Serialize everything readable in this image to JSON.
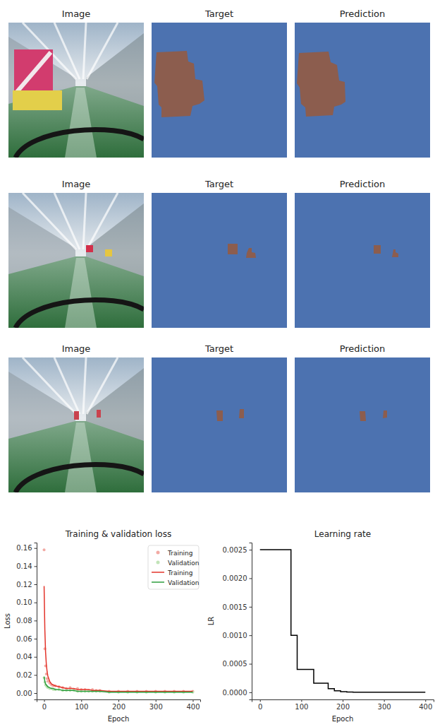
{
  "panels": [
    {
      "title": "Image"
    },
    {
      "title": "Target"
    },
    {
      "title": "Prediction"
    },
    {
      "title": "Image"
    },
    {
      "title": "Target"
    },
    {
      "title": "Prediction"
    },
    {
      "title": "Image"
    },
    {
      "title": "Target"
    },
    {
      "title": "Prediction"
    }
  ],
  "chart_data": [
    {
      "type": "line",
      "title": "Training & validation loss",
      "x_label": "Epoch",
      "y_label": "Loss",
      "x": [
        0,
        2,
        4,
        6,
        8,
        10,
        15,
        20,
        25,
        30,
        40,
        50,
        60,
        70,
        80,
        90,
        100,
        110,
        120,
        130,
        140,
        150,
        175,
        200,
        225,
        250,
        275,
        300,
        325,
        350,
        375,
        400
      ],
      "series": [
        {
          "name": "Training",
          "type": "scatter",
          "marker": "circle",
          "color": "#f2aaa4",
          "values": [
            0.158,
            0.049,
            0.03,
            0.021,
            0.016,
            0.013,
            0.011,
            0.009,
            0.008,
            0.008,
            0.007,
            0.006,
            0.005,
            0.006,
            0.004,
            0.005,
            0.004,
            0.004,
            0.003,
            0.004,
            0.003,
            0.003,
            0.002,
            0.002,
            0.002,
            0.002,
            0.002,
            0.002,
            0.002,
            0.002,
            0.002,
            0.002
          ]
        },
        {
          "name": "Validation",
          "type": "scatter",
          "marker": "circle",
          "color": "#c2e4b8",
          "values": [
            0.017,
            0.012,
            0.009,
            0.008,
            0.007,
            0.006,
            0.005,
            0.005,
            0.004,
            0.004,
            0.004,
            0.003,
            0.003,
            0.003,
            0.003,
            0.002,
            0.002,
            0.002,
            0.002,
            0.002,
            0.002,
            0.002,
            0.001,
            0.001,
            0.001,
            0.001,
            0.001,
            0.001,
            0.001,
            0.001,
            0.001,
            0.001
          ]
        },
        {
          "name": "Training",
          "type": "line",
          "color": "#e3342b",
          "values": [
            0.118,
            0.07,
            0.045,
            0.032,
            0.024,
            0.019,
            0.013,
            0.01,
            0.009,
            0.008,
            0.007,
            0.006,
            0.005,
            0.005,
            0.005,
            0.004,
            0.004,
            0.004,
            0.004,
            0.003,
            0.003,
            0.003,
            0.002,
            0.002,
            0.002,
            0.002,
            0.002,
            0.002,
            0.002,
            0.002,
            0.002,
            0.002
          ]
        },
        {
          "name": "Validation",
          "type": "line",
          "color": "#2e9e3e",
          "values": [
            0.018,
            0.013,
            0.01,
            0.009,
            0.008,
            0.007,
            0.006,
            0.005,
            0.005,
            0.004,
            0.004,
            0.003,
            0.003,
            0.003,
            0.003,
            0.002,
            0.002,
            0.002,
            0.002,
            0.002,
            0.002,
            0.002,
            0.001,
            0.001,
            0.001,
            0.001,
            0.001,
            0.001,
            0.001,
            0.001,
            0.001,
            0.001
          ]
        }
      ],
      "xlim": [
        -20,
        420
      ],
      "ylim": [
        -0.007,
        0.166
      ],
      "xticks": [
        0,
        100,
        200,
        300,
        400
      ],
      "yticks": [
        {
          "value": 0,
          "label": "0.00"
        },
        {
          "value": 0.02,
          "label": "0.02"
        },
        {
          "value": 0.04,
          "label": "0.04"
        },
        {
          "value": 0.06,
          "label": "0.06"
        },
        {
          "value": 0.08,
          "label": "0.08"
        },
        {
          "value": 0.1,
          "label": "0.10"
        },
        {
          "value": 0.12,
          "label": "0.12"
        },
        {
          "value": 0.14,
          "label": "0.14"
        },
        {
          "value": 0.16,
          "label": "0.16"
        }
      ],
      "legend": "upper right"
    },
    {
      "type": "line",
      "title": "Learning rate",
      "x_label": "Epoch",
      "y_label": "LR",
      "x": [
        0,
        75,
        90,
        130,
        165,
        180,
        195,
        210,
        225,
        400
      ],
      "series": [
        {
          "type": "line",
          "line_style": "step",
          "color": "#000000",
          "values": [
            0.0025,
            0.001,
            0.0004,
            0.00016,
            6.4e-05,
            2.56e-05,
            1e-05,
            4e-06,
            1.6e-06,
            1.6e-06
          ]
        }
      ],
      "xlim": [
        -20,
        420
      ],
      "ylim": [
        -0.000125,
        0.002625
      ],
      "xticks": [
        0,
        100,
        200,
        300,
        400
      ],
      "yticks": [
        {
          "value": 0,
          "label": "0.0000"
        },
        {
          "value": 0.0005,
          "label": "0.0005"
        },
        {
          "value": 0.001,
          "label": "0.0010"
        },
        {
          "value": 0.0015,
          "label": "0.0015"
        },
        {
          "value": 0.002,
          "label": "0.0020"
        },
        {
          "value": 0.0025,
          "label": "0.0025"
        }
      ]
    }
  ]
}
